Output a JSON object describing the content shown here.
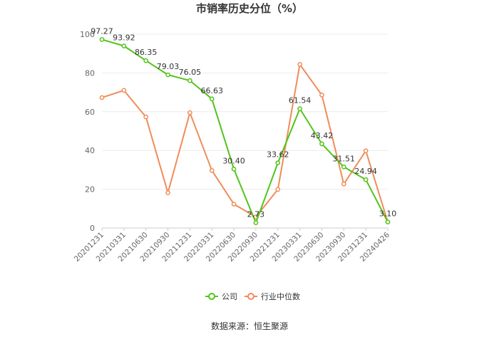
{
  "chart_data": {
    "type": "line",
    "title": "市销率历史分位（%）",
    "categories": [
      "20201231",
      "20210331",
      "20210630",
      "20210930",
      "20211231",
      "20220331",
      "20220630",
      "20220930",
      "20221231",
      "20230331",
      "20230630",
      "20230930",
      "20231231",
      "20240426"
    ],
    "ylim": [
      0,
      100
    ],
    "yticks": [
      0,
      20,
      40,
      60,
      80,
      100
    ],
    "grid": true,
    "legend_position": "bottom",
    "series": [
      {
        "name": "公司",
        "color": "#52c41a",
        "values": [
          97.27,
          93.92,
          86.35,
          79.03,
          76.05,
          66.63,
          30.4,
          2.73,
          33.62,
          61.54,
          43.42,
          31.51,
          24.94,
          3.1
        ],
        "labels": [
          "97.27",
          "93.92",
          "86.35",
          "79.03",
          "76.05",
          "66.63",
          "30.40",
          "2.73",
          "33.62",
          "61.54",
          "43.42",
          "31.51",
          "24.94",
          "3.10"
        ]
      },
      {
        "name": "行业中位数",
        "color": "#f08c5a",
        "values": [
          67.3,
          71.0,
          57.3,
          18.2,
          59.5,
          29.7,
          12.3,
          5.7,
          19.9,
          84.4,
          68.6,
          22.7,
          39.8,
          3.1
        ]
      }
    ]
  },
  "source": "数据来源：恒生聚源"
}
